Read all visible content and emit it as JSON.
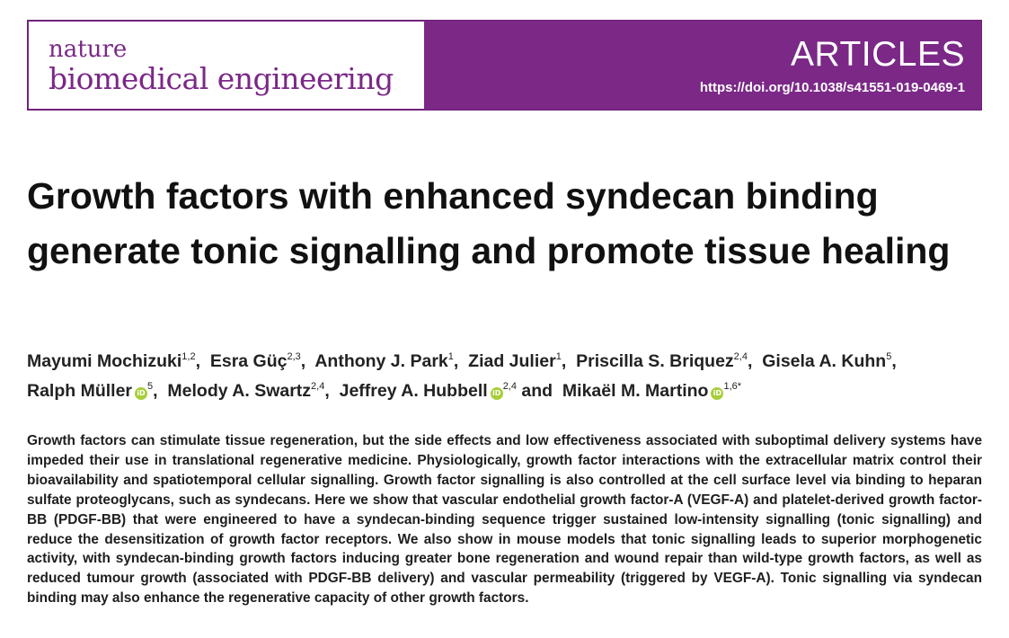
{
  "header": {
    "journal_line1": "nature",
    "journal_line2": "biomedical engineering",
    "section": "ARTICLES",
    "doi": "https://doi.org/10.1038/s41551-019-0469-1",
    "colors": {
      "brand_purple": "#7b2887",
      "orcid_green": "#a6ce39"
    }
  },
  "article": {
    "title": "Growth factors with enhanced syndecan binding generate tonic signalling and promote tissue healing",
    "authors": [
      {
        "name": "Mayumi Mochizuki",
        "affil": "1,2",
        "sep": ", "
      },
      {
        "name": "Esra Güç",
        "affil": "2,3",
        "sep": ", "
      },
      {
        "name": "Anthony J. Park",
        "affil": "1",
        "sep": ", "
      },
      {
        "name": "Ziad Julier",
        "affil": "1",
        "sep": ", "
      },
      {
        "name": "Priscilla S. Briquez",
        "affil": "2,4",
        "sep": ", "
      },
      {
        "name": "Gisela A. Kuhn",
        "affil": "5",
        "sep": ", "
      },
      {
        "name": "Ralph Müller",
        "affil": "5",
        "sep": ", "
      },
      {
        "name": "Melody A. Swartz",
        "affil": "2,4",
        "sep": ", "
      },
      {
        "name": "Jeffrey A. Hubbell",
        "affil": "2,4",
        "sep": " and "
      },
      {
        "name": "Mikaël M. Martino",
        "affil": "1,6*",
        "sep": ""
      }
    ],
    "orcid_icon_label": "iD",
    "abstract": "Growth factors can stimulate tissue regeneration, but the side effects and low effectiveness associated with suboptimal delivery systems have impeded their use in translational regenerative medicine. Physiologically, growth factor interactions with the extracellular matrix control their bioavailability and spatiotemporal cellular signalling. Growth factor signalling is also controlled at the cell surface level via binding to heparan sulfate proteoglycans, such as syndecans. Here we show that vascular endothelial growth factor-A (VEGF-A) and platelet-derived growth factor-BB (PDGF-BB) that were engineered to have a syndecan-binding sequence trigger sustained low-intensity signalling (tonic signalling) and reduce the desensitization of growth factor receptors. We also show in mouse models that tonic signalling leads to superior morphogenetic activity, with syndecan-binding growth factors inducing greater bone regeneration and wound repair than wild-type growth factors, as well as reduced tumour growth (associated with PDGF-BB delivery) and vascular permeability (triggered by VEGF-A). Tonic signalling via syndecan binding may also enhance the regenerative capacity of other growth factors."
  }
}
